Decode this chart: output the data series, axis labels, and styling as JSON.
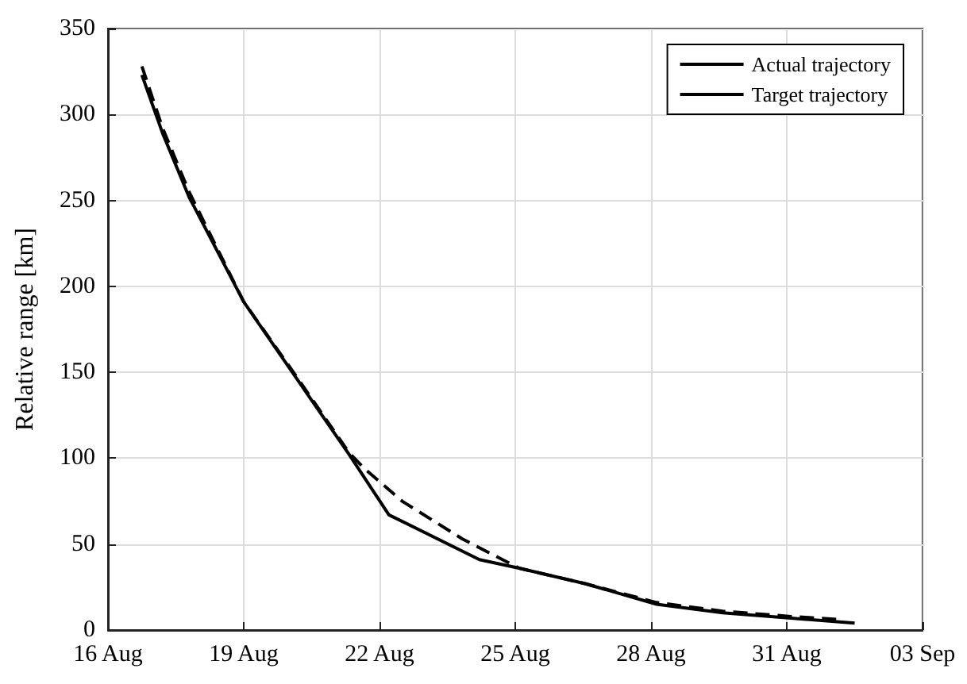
{
  "chart_data": {
    "type": "line",
    "ylabel": "Relative range [km]",
    "xlim": [
      "--08-16",
      "--09-03"
    ],
    "xticks": [
      {
        "value": "--08-16",
        "label": "16 Aug"
      },
      {
        "value": "--08-19",
        "label": "19 Aug"
      },
      {
        "value": "--08-22",
        "label": "22 Aug"
      },
      {
        "value": "--08-25",
        "label": "25 Aug"
      },
      {
        "value": "--08-28",
        "label": "28 Aug"
      },
      {
        "value": "--08-31",
        "label": "31 Aug"
      },
      {
        "value": "--09-03",
        "label": "03 Sep"
      }
    ],
    "ylim": [
      0,
      350
    ],
    "yticks": [
      0,
      50,
      100,
      150,
      200,
      250,
      300,
      350
    ],
    "grid": true,
    "legend": "top right",
    "marker": "none",
    "series": [
      {
        "name": "Actual trajectory",
        "color": "#000000",
        "line_style": "solid",
        "x": [
          "--08-16T18:00",
          "--08-17T05:00",
          "--08-17T19:00",
          "--08-19T00:00",
          "--08-20T03:00",
          "--08-21T08:00",
          "--08-22T05:00",
          "--08-24T05:00",
          "--08-25T02:00",
          "--08-26T13:00",
          "--08-28T03:00",
          "--08-29T14:00",
          "--08-31T01:00",
          "--09-01T12:00"
        ],
        "values": [
          323,
          289,
          252,
          191,
          148,
          102,
          67,
          41,
          36,
          27,
          15,
          10,
          7,
          4
        ]
      },
      {
        "name": "Target trajectory",
        "color": "#000000",
        "line_style": "dashed",
        "x": [
          "--08-16T18:00",
          "--08-17T05:00",
          "--08-17T19:00",
          "--08-19T00:00",
          "--08-20T03:00",
          "--08-21T08:00",
          "--08-21T16:00",
          "--08-22T12:00",
          "--08-23T20:00",
          "--08-25T02:00",
          "--08-26T13:00",
          "--08-28T03:00",
          "--08-29T14:00",
          "--08-31T01:00",
          "--09-01T06:00"
        ],
        "values": [
          328,
          292,
          255,
          191,
          149,
          103,
          94,
          75,
          53,
          36,
          27,
          16,
          11,
          8,
          6
        ]
      }
    ]
  }
}
